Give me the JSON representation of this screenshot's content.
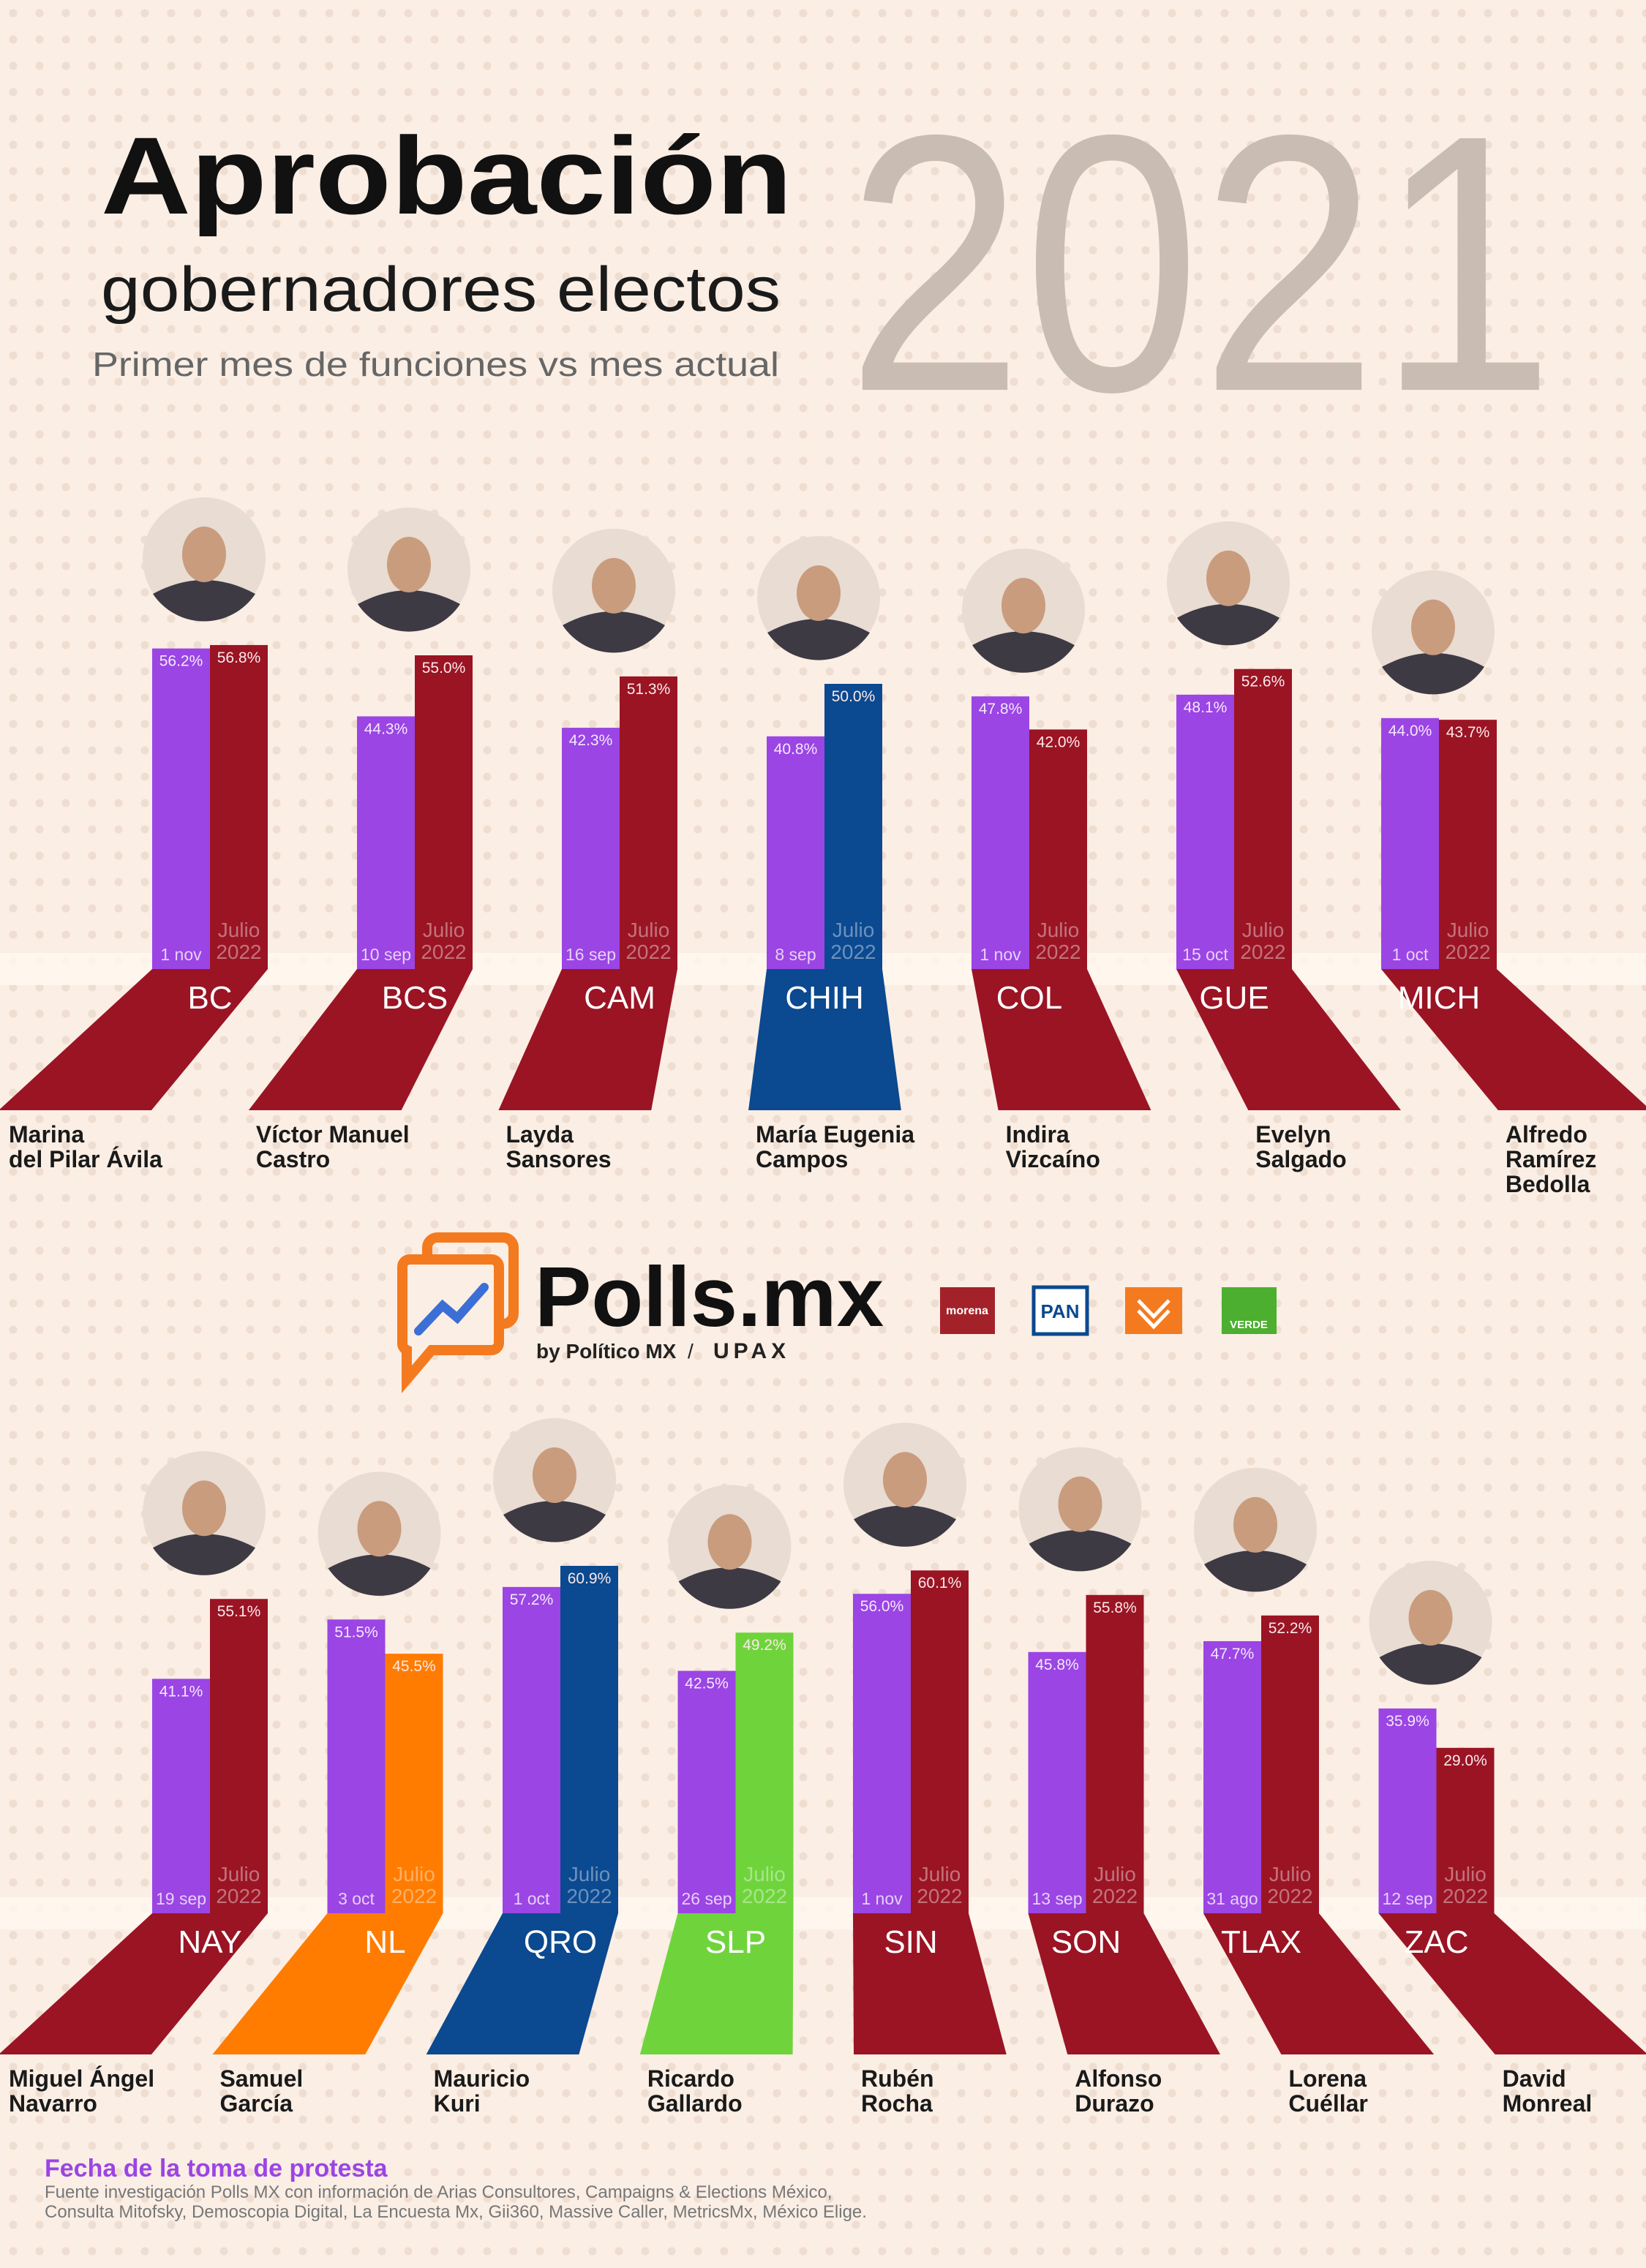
{
  "header": {
    "title": "Aprobación",
    "subtitle": "gobernadores electos",
    "description": "Primer mes de funciones vs mes actual",
    "year": "2021"
  },
  "chart_data": [
    {
      "type": "bar",
      "categories": [
        "BC",
        "BCS",
        "CAM",
        "CHIH",
        "COL",
        "GUE",
        "MICH"
      ],
      "governors": [
        [
          "Marina",
          "del Pilar Ávila"
        ],
        [
          "Víctor Manuel",
          "Castro"
        ],
        [
          "Layda",
          "Sansores"
        ],
        [
          "María Eugenia",
          "Campos"
        ],
        [
          "Indira",
          "Vizcaíno"
        ],
        [
          "Evelyn",
          "Salgado"
        ],
        [
          "Alfredo",
          "Ramírez",
          "Bedolla"
        ]
      ],
      "series": [
        {
          "color": "#9b45e4",
          "values": [
            56.2,
            44.3,
            42.3,
            40.8,
            47.8,
            48.1,
            44.0
          ],
          "value_labels": [
            "56.2%",
            "44.3%",
            "42.3%",
            "40.8%",
            "47.8%",
            "48.1%",
            "44.0%"
          ],
          "bar_labels": [
            "1 nov",
            "10 sep",
            "16 sep",
            "8 sep",
            "1 nov",
            "15 oct",
            "1 oct"
          ]
        },
        {
          "colors": [
            "#9a1424",
            "#9a1424",
            "#9a1424",
            "#0b4990",
            "#9a1424",
            "#9a1424",
            "#9a1424"
          ],
          "values": [
            56.8,
            55.0,
            51.3,
            50.0,
            42.0,
            52.6,
            43.7
          ],
          "value_labels": [
            "56.8%",
            "55.0%",
            "51.3%",
            "50.0%",
            "42.0%",
            "52.6%",
            "43.7%"
          ],
          "bar_label": [
            "Julio",
            "2022"
          ]
        }
      ]
    },
    {
      "type": "bar",
      "categories": [
        "NAY",
        "NL",
        "QRO",
        "SLP",
        "SIN",
        "SON",
        "TLAX",
        "ZAC"
      ],
      "governors": [
        [
          "Miguel Ángel",
          "Navarro"
        ],
        [
          "Samuel",
          "García"
        ],
        [
          "Mauricio",
          "Kuri"
        ],
        [
          "Ricardo",
          "Gallardo"
        ],
        [
          "Rubén",
          "Rocha"
        ],
        [
          "Alfonso",
          "Durazo"
        ],
        [
          "Lorena",
          "Cuéllar"
        ],
        [
          "David",
          "Monreal"
        ]
      ],
      "series": [
        {
          "color": "#9b45e4",
          "values": [
            41.1,
            51.5,
            57.2,
            42.5,
            56.0,
            45.8,
            47.7,
            35.9
          ],
          "value_labels": [
            "41.1%",
            "51.5%",
            "57.2%",
            "42.5%",
            "56.0%",
            "45.8%",
            "47.7%",
            "35.9%"
          ],
          "bar_labels": [
            "19 sep",
            "3 oct",
            "1 oct",
            "26 sep",
            "1 nov",
            "13 sep",
            "31 ago",
            "12 sep"
          ]
        },
        {
          "colors": [
            "#9a1424",
            "#ff7c00",
            "#0b4990",
            "#6fd43c",
            "#9a1424",
            "#9a1424",
            "#9a1424",
            "#9a1424"
          ],
          "values": [
            55.1,
            45.5,
            60.9,
            49.2,
            60.1,
            55.8,
            52.2,
            29.0
          ],
          "value_labels": [
            "55.1%",
            "45.5%",
            "60.9%",
            "49.2%",
            "60.1%",
            "55.8%",
            "52.2%",
            "29.0%"
          ],
          "bar_label": [
            "Julio",
            "2022"
          ]
        }
      ]
    }
  ],
  "brand": {
    "name": "Polls.mx",
    "byline": "by Político MX",
    "separator": "/",
    "partner": "UPAX",
    "parties": [
      "morena",
      "PAN",
      "VERDE"
    ]
  },
  "footer": {
    "legend": "Fecha de la toma de protesta",
    "source": [
      "Fuente investigación Polls MX con información de Arias Consultores, Campaigns & Elections México,",
      "Consulta Mitofsky, Demoscopia Digital, La Encuesta Mx, Gii360, Massive Caller, MetricsMx, México Elige."
    ]
  }
}
